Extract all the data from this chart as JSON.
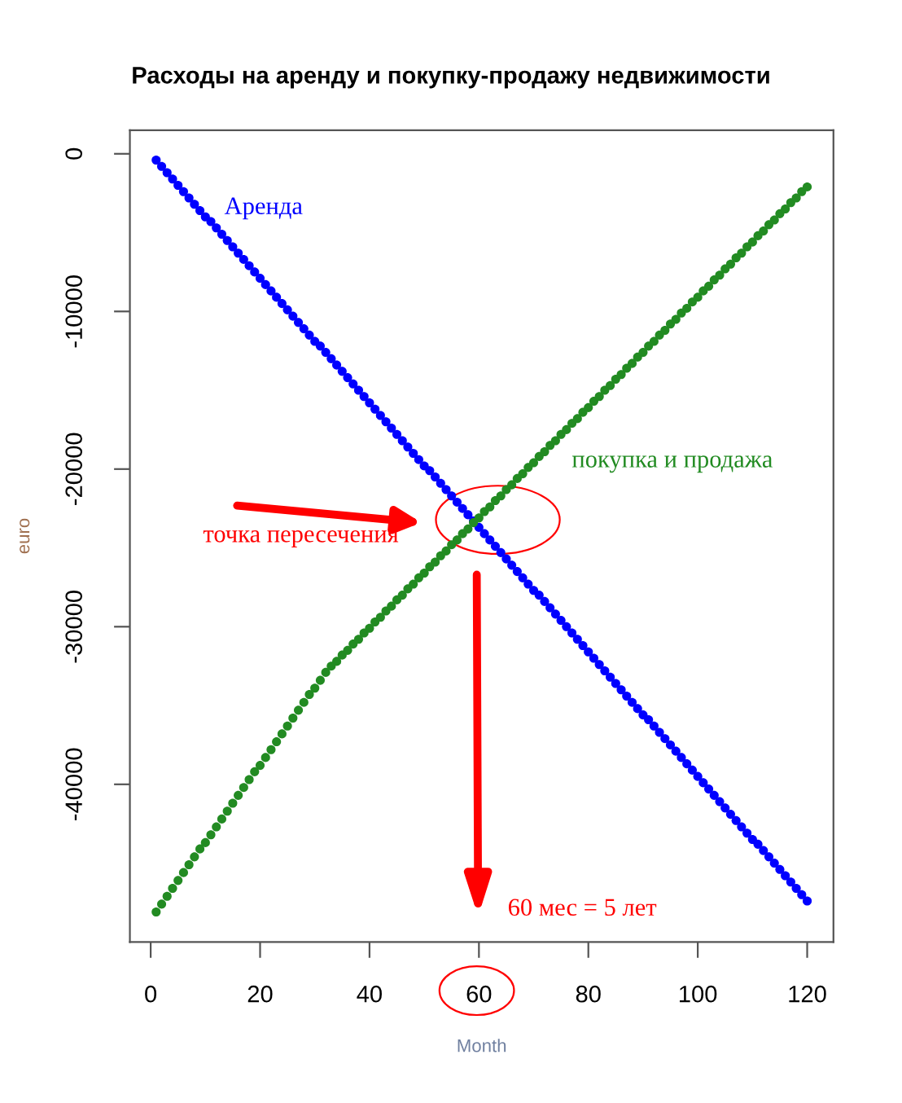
{
  "chart_data": {
    "type": "scatter",
    "title": "Расходы на аренду и покупку-продажу недвижимости",
    "xlabel": "Month",
    "ylabel": "euro",
    "marker": "circle",
    "grid": false,
    "legend": false,
    "x": [
      1,
      2,
      3,
      4,
      5,
      6,
      7,
      8,
      9,
      10,
      11,
      12,
      13,
      14,
      15,
      16,
      17,
      18,
      19,
      20,
      21,
      22,
      23,
      24,
      25,
      26,
      27,
      28,
      29,
      30,
      31,
      32,
      33,
      34,
      35,
      36,
      37,
      38,
      39,
      40,
      41,
      42,
      43,
      44,
      45,
      46,
      47,
      48,
      49,
      50,
      51,
      52,
      53,
      54,
      55,
      56,
      57,
      58,
      59,
      60,
      61,
      62,
      63,
      64,
      65,
      66,
      67,
      68,
      69,
      70,
      71,
      72,
      73,
      74,
      75,
      76,
      77,
      78,
      79,
      80,
      81,
      82,
      83,
      84,
      85,
      86,
      87,
      88,
      89,
      90,
      91,
      92,
      93,
      94,
      95,
      96,
      97,
      98,
      99,
      100,
      101,
      102,
      103,
      104,
      105,
      106,
      107,
      108,
      109,
      110,
      111,
      112,
      113,
      114,
      115,
      116,
      117,
      118,
      119,
      120
    ],
    "series": [
      {
        "color": "#0000ff",
        "values": [
          -400,
          -800,
          -1200,
          -1600,
          -2000,
          -2400,
          -2800,
          -3200,
          -3600,
          -4000,
          -4300,
          -4700,
          -5100,
          -5500,
          -5900,
          -6300,
          -6700,
          -7100,
          -7500,
          -7900,
          -8300,
          -8700,
          -9100,
          -9500,
          -9900,
          -10300,
          -10700,
          -11100,
          -11500,
          -11900,
          -12200,
          -12600,
          -13000,
          -13400,
          -13800,
          -14200,
          -14600,
          -15000,
          -15400,
          -15800,
          -16200,
          -16600,
          -17000,
          -17400,
          -17800,
          -18200,
          -18600,
          -19000,
          -19400,
          -19800,
          -20100,
          -20500,
          -20900,
          -21300,
          -21700,
          -22100,
          -22500,
          -22900,
          -23300,
          -23700,
          -24100,
          -24500,
          -24900,
          -25300,
          -25700,
          -26100,
          -26500,
          -26900,
          -27300,
          -27700,
          -28000,
          -28400,
          -28800,
          -29200,
          -29600,
          -30000,
          -30400,
          -30800,
          -31200,
          -31600,
          -32000,
          -32400,
          -32800,
          -33200,
          -33600,
          -34000,
          -34400,
          -34800,
          -35200,
          -35600,
          -35900,
          -36300,
          -36700,
          -37100,
          -37500,
          -37900,
          -38300,
          -38700,
          -39100,
          -39500,
          -39900,
          -40300,
          -40700,
          -41100,
          -41500,
          -41900,
          -42300,
          -42700,
          -43100,
          -43500,
          -43800,
          -44200,
          -44600,
          -45000,
          -45400,
          -45800,
          -46200,
          -46600,
          -47000,
          -47400
        ]
      },
      {
        "color": "#228b22",
        "values": [
          -48100,
          -47600,
          -47100,
          -46600,
          -46100,
          -45600,
          -45100,
          -44600,
          -44100,
          -43700,
          -43200,
          -42700,
          -42200,
          -41700,
          -41200,
          -40700,
          -40200,
          -39700,
          -39200,
          -38800,
          -38300,
          -37800,
          -37300,
          -36800,
          -36300,
          -35800,
          -35300,
          -34800,
          -34300,
          -33900,
          -33400,
          -32900,
          -32500,
          -32200,
          -31800,
          -31500,
          -31100,
          -30800,
          -30400,
          -30100,
          -29700,
          -29400,
          -29000,
          -28700,
          -28300,
          -28000,
          -27600,
          -27300,
          -26900,
          -26600,
          -26200,
          -25900,
          -25500,
          -25200,
          -24800,
          -24500,
          -24100,
          -23800,
          -23400,
          -23100,
          -22700,
          -22400,
          -22000,
          -21700,
          -21300,
          -21000,
          -20600,
          -20300,
          -19900,
          -19600,
          -19200,
          -18900,
          -18500,
          -18200,
          -17800,
          -17500,
          -17100,
          -16800,
          -16400,
          -16100,
          -15700,
          -15400,
          -15000,
          -14700,
          -14300,
          -14000,
          -13600,
          -13300,
          -12900,
          -12600,
          -12200,
          -11900,
          -11500,
          -11200,
          -10800,
          -10500,
          -10100,
          -9800,
          -9400,
          -9100,
          -8700,
          -8400,
          -8000,
          -7700,
          -7300,
          -7000,
          -6600,
          -6300,
          -5900,
          -5600,
          -5200,
          -4900,
          -4500,
          -4200,
          -3800,
          -3500,
          -3100,
          -2800,
          -2400,
          -2100
        ]
      }
    ],
    "annotations": [
      "Аренда",
      "покупка и продажа",
      "точка пересечения",
      "60 мес = 5 лет"
    ],
    "xlim": [
      -3.8,
      124.8
    ],
    "ylim": [
      -50000,
      1500
    ],
    "xticks": [
      0,
      20,
      40,
      60,
      80,
      100,
      120
    ],
    "yticks": [
      0,
      -10000,
      -20000,
      -30000,
      -40000
    ]
  }
}
